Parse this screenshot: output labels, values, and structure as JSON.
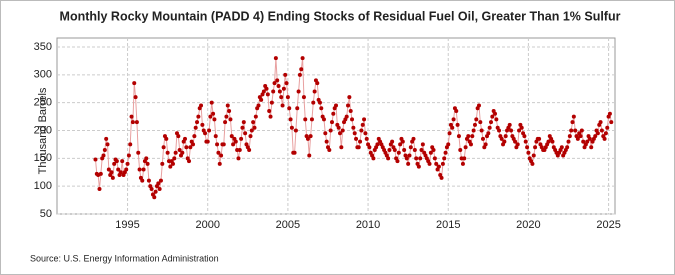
{
  "chart_data": {
    "type": "line",
    "title": "Monthly Rocky Mountain (PADD 4) Ending Stocks of Residual Fuel Oil, Greater Than 1% Sulfur",
    "y_label": "Thousand Barrels",
    "source": "Source: U.S. Energy Information Administration",
    "xlim": [
      1990.6,
      2025.4
    ],
    "xticks": [
      1995,
      2000,
      2005,
      2010,
      2015,
      2020,
      2025
    ],
    "ylim": [
      50,
      350
    ],
    "yticks": [
      50,
      100,
      150,
      200,
      250,
      300,
      350
    ],
    "grid": true,
    "x": [
      1993,
      1993.083,
      1993.167,
      1993.25,
      1993.333,
      1993.417,
      1993.5,
      1993.583,
      1993.667,
      1993.75,
      1993.833,
      1993.917,
      1994,
      1994.083,
      1994.167,
      1994.25,
      1994.333,
      1994.417,
      1994.5,
      1994.583,
      1994.667,
      1994.75,
      1994.833,
      1994.917,
      1995,
      1995.083,
      1995.167,
      1995.25,
      1995.333,
      1995.417,
      1995.5,
      1995.583,
      1995.667,
      1995.75,
      1995.833,
      1995.917,
      1996,
      1996.083,
      1996.167,
      1996.25,
      1996.333,
      1996.417,
      1996.5,
      1996.583,
      1996.667,
      1996.75,
      1996.833,
      1996.917,
      1997,
      1997.083,
      1997.167,
      1997.25,
      1997.333,
      1997.417,
      1997.5,
      1997.583,
      1997.667,
      1997.75,
      1997.833,
      1997.917,
      1998,
      1998.083,
      1998.167,
      1998.25,
      1998.333,
      1998.417,
      1998.5,
      1998.583,
      1998.667,
      1998.75,
      1998.833,
      1998.917,
      1999,
      1999.083,
      1999.167,
      1999.25,
      1999.333,
      1999.417,
      1999.5,
      1999.583,
      1999.667,
      1999.75,
      1999.833,
      1999.917,
      2000,
      2000.083,
      2000.167,
      2000.25,
      2000.333,
      2000.417,
      2000.5,
      2000.583,
      2000.667,
      2000.75,
      2000.833,
      2000.917,
      2001,
      2001.083,
      2001.167,
      2001.25,
      2001.333,
      2001.417,
      2001.5,
      2001.583,
      2001.667,
      2001.75,
      2001.833,
      2001.917,
      2002,
      2002.083,
      2002.167,
      2002.25,
      2002.333,
      2002.417,
      2002.5,
      2002.583,
      2002.667,
      2002.75,
      2002.833,
      2002.917,
      2003,
      2003.083,
      2003.167,
      2003.25,
      2003.333,
      2003.417,
      2003.5,
      2003.583,
      2003.667,
      2003.75,
      2003.833,
      2003.917,
      2004,
      2004.083,
      2004.167,
      2004.25,
      2004.333,
      2004.417,
      2004.5,
      2004.583,
      2004.667,
      2004.75,
      2004.833,
      2004.917,
      2005,
      2005.083,
      2005.167,
      2005.25,
      2005.333,
      2005.417,
      2005.5,
      2005.583,
      2005.667,
      2005.75,
      2005.833,
      2005.917,
      2006,
      2006.083,
      2006.167,
      2006.25,
      2006.333,
      2006.417,
      2006.5,
      2006.583,
      2006.667,
      2006.75,
      2006.833,
      2006.917,
      2007,
      2007.083,
      2007.167,
      2007.25,
      2007.333,
      2007.417,
      2007.5,
      2007.583,
      2007.667,
      2007.75,
      2007.833,
      2007.917,
      2008,
      2008.083,
      2008.167,
      2008.25,
      2008.333,
      2008.417,
      2008.5,
      2008.583,
      2008.667,
      2008.75,
      2008.833,
      2008.917,
      2009,
      2009.083,
      2009.167,
      2009.25,
      2009.333,
      2009.417,
      2009.5,
      2009.583,
      2009.667,
      2009.75,
      2009.833,
      2009.917,
      2010,
      2010.083,
      2010.167,
      2010.25,
      2010.333,
      2010.417,
      2010.5,
      2010.583,
      2010.667,
      2010.75,
      2010.833,
      2010.917,
      2011,
      2011.083,
      2011.167,
      2011.25,
      2011.333,
      2011.417,
      2011.5,
      2011.583,
      2011.667,
      2011.75,
      2011.833,
      2011.917,
      2012,
      2012.083,
      2012.167,
      2012.25,
      2012.333,
      2012.417,
      2012.5,
      2012.583,
      2012.667,
      2012.75,
      2012.833,
      2012.917,
      2013,
      2013.083,
      2013.167,
      2013.25,
      2013.333,
      2013.417,
      2013.5,
      2013.583,
      2013.667,
      2013.75,
      2013.833,
      2013.917,
      2014,
      2014.083,
      2014.167,
      2014.25,
      2014.333,
      2014.417,
      2014.5,
      2014.583,
      2014.667,
      2014.75,
      2014.833,
      2014.917,
      2015,
      2015.083,
      2015.167,
      2015.25,
      2015.333,
      2015.417,
      2015.5,
      2015.583,
      2015.667,
      2015.75,
      2015.833,
      2015.917,
      2016,
      2016.083,
      2016.167,
      2016.25,
      2016.333,
      2016.417,
      2016.5,
      2016.583,
      2016.667,
      2016.75,
      2016.833,
      2016.917,
      2017,
      2017.083,
      2017.167,
      2017.25,
      2017.333,
      2017.417,
      2017.5,
      2017.583,
      2017.667,
      2017.75,
      2017.833,
      2017.917,
      2018,
      2018.083,
      2018.167,
      2018.25,
      2018.333,
      2018.417,
      2018.5,
      2018.583,
      2018.667,
      2018.75,
      2018.833,
      2018.917,
      2019,
      2019.083,
      2019.167,
      2019.25,
      2019.333,
      2019.417,
      2019.5,
      2019.583,
      2019.667,
      2019.75,
      2019.833,
      2019.917,
      2020,
      2020.083,
      2020.167,
      2020.25,
      2020.333,
      2020.417,
      2020.5,
      2020.583,
      2020.667,
      2020.75,
      2020.833,
      2020.917,
      2021,
      2021.083,
      2021.167,
      2021.25,
      2021.333,
      2021.417,
      2021.5,
      2021.583,
      2021.667,
      2021.75,
      2021.833,
      2021.917,
      2022,
      2022.083,
      2022.167,
      2022.25,
      2022.333,
      2022.417,
      2022.5,
      2022.583,
      2022.667,
      2022.75,
      2022.833,
      2022.917,
      2023,
      2023.083,
      2023.167,
      2023.25,
      2023.333,
      2023.417,
      2023.5,
      2023.583,
      2023.667,
      2023.75,
      2023.833,
      2023.917,
      2024,
      2024.083,
      2024.167,
      2024.25,
      2024.333,
      2024.417,
      2024.5,
      2024.583,
      2024.667,
      2024.75,
      2024.833,
      2024.917,
      2025,
      2025.083,
      2025.167
    ],
    "series": [
      {
        "color": "#b30000",
        "line_color": "#e8a0a0",
        "values": [
          148,
          122,
          120,
          95,
          122,
          150,
          155,
          165,
          185,
          175,
          130,
          120,
          125,
          115,
          140,
          148,
          145,
          130,
          120,
          125,
          145,
          120,
          125,
          130,
          140,
          155,
          175,
          225,
          215,
          285,
          260,
          215,
          160,
          130,
          115,
          110,
          130,
          145,
          150,
          140,
          110,
          100,
          95,
          85,
          80,
          90,
          100,
          105,
          95,
          110,
          140,
          170,
          190,
          185,
          160,
          145,
          135,
          145,
          140,
          150,
          160,
          195,
          190,
          165,
          155,
          160,
          180,
          185,
          170,
          150,
          145,
          170,
          180,
          175,
          190,
          205,
          215,
          225,
          240,
          245,
          210,
          200,
          195,
          180,
          180,
          200,
          225,
          250,
          230,
          220,
          190,
          175,
          160,
          140,
          155,
          175,
          175,
          215,
          225,
          245,
          235,
          220,
          190,
          175,
          185,
          180,
          165,
          150,
          165,
          185,
          205,
          215,
          195,
          175,
          170,
          165,
          190,
          200,
          215,
          205,
          225,
          240,
          245,
          260,
          255,
          265,
          270,
          280,
          275,
          265,
          235,
          225,
          250,
          270,
          285,
          330,
          290,
          280,
          270,
          260,
          245,
          275,
          300,
          285,
          260,
          240,
          220,
          205,
          160,
          160,
          200,
          240,
          270,
          300,
          310,
          330,
          260,
          220,
          190,
          185,
          155,
          190,
          220,
          250,
          270,
          290,
          285,
          255,
          250,
          240,
          225,
          220,
          195,
          180,
          170,
          165,
          200,
          215,
          230,
          240,
          245,
          210,
          205,
          195,
          170,
          200,
          215,
          220,
          225,
          245,
          260,
          235,
          220,
          205,
          195,
          185,
          170,
          170,
          180,
          200,
          210,
          220,
          195,
          185,
          175,
          170,
          160,
          155,
          150,
          165,
          170,
          175,
          185,
          180,
          175,
          170,
          165,
          160,
          155,
          150,
          165,
          175,
          180,
          170,
          165,
          150,
          145,
          160,
          175,
          185,
          180,
          165,
          155,
          150,
          140,
          155,
          170,
          180,
          185,
          165,
          150,
          140,
          135,
          150,
          165,
          175,
          160,
          155,
          150,
          145,
          140,
          160,
          170,
          165,
          150,
          140,
          130,
          135,
          120,
          115,
          140,
          150,
          160,
          170,
          175,
          195,
          210,
          205,
          220,
          240,
          235,
          210,
          190,
          165,
          150,
          140,
          150,
          170,
          185,
          190,
          180,
          175,
          190,
          200,
          210,
          220,
          240,
          245,
          215,
          200,
          185,
          170,
          175,
          190,
          195,
          205,
          215,
          225,
          235,
          230,
          220,
          205,
          200,
          190,
          185,
          175,
          180,
          190,
          200,
          205,
          210,
          200,
          190,
          185,
          180,
          170,
          175,
          200,
          210,
          205,
          195,
          190,
          180,
          170,
          160,
          150,
          145,
          140,
          155,
          170,
          180,
          185,
          185,
          175,
          170,
          165,
          165,
          170,
          175,
          180,
          190,
          185,
          180,
          170,
          165,
          160,
          155,
          160,
          165,
          170,
          155,
          160,
          165,
          170,
          180,
          190,
          200,
          215,
          225,
          200,
          190,
          185,
          195,
          190,
          200,
          180,
          170,
          175,
          180,
          190,
          185,
          170,
          180,
          185,
          190,
          200,
          195,
          210,
          215,
          200,
          190,
          185,
          195,
          205,
          225,
          230,
          215
        ]
      }
    ]
  }
}
